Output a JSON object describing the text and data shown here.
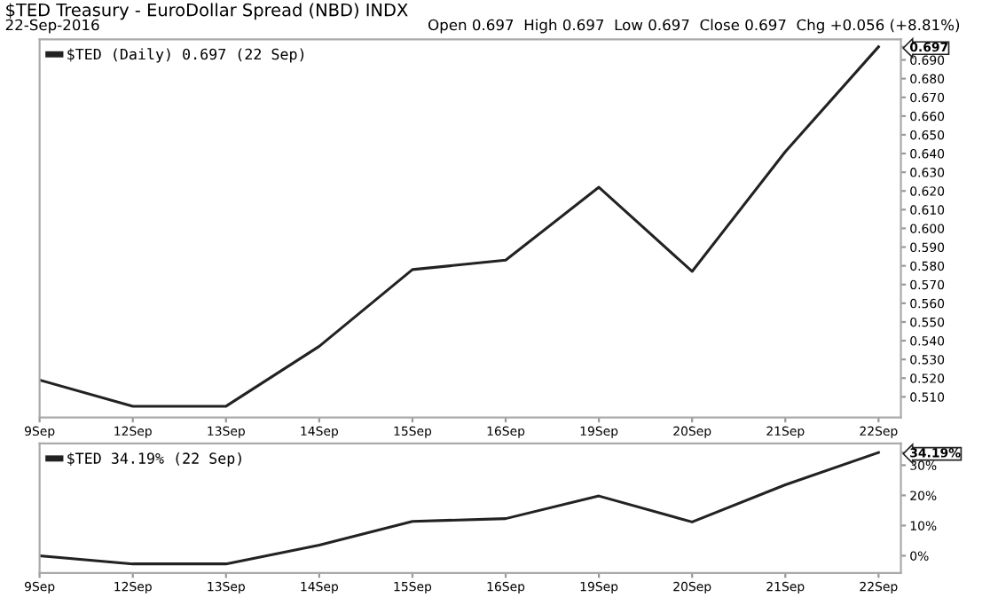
{
  "chart_data": [
    {
      "type": "line",
      "title": "$TED Treasury - EuroDollar Spread (NBD) INDX",
      "subtitle": "22-Sep-2016",
      "annotations": [
        "Open 0.697  High 0.697  Low 0.697  Close 0.697  Chg +0.056 (+8.81%)"
      ],
      "categories": [
        "9Sep",
        "12Sep",
        "13Sep",
        "14Sep",
        "15Sep",
        "16Sep",
        "19Sep",
        "20Sep",
        "21Sep",
        "22Sep"
      ],
      "series": [
        {
          "name": "$TED (Daily) 0.697 (22 Sep)",
          "color": "#222222",
          "values": [
            0.519,
            0.505,
            0.505,
            0.537,
            0.578,
            0.583,
            0.622,
            0.577,
            0.641,
            0.697
          ]
        }
      ],
      "ylim": [
        0.499,
        0.701
      ],
      "yticks": [
        {
          "value": 0.51,
          "label": "0.510"
        },
        {
          "value": 0.52,
          "label": "0.520"
        },
        {
          "value": 0.53,
          "label": "0.530"
        },
        {
          "value": 0.54,
          "label": "0.540"
        },
        {
          "value": 0.55,
          "label": "0.550"
        },
        {
          "value": 0.56,
          "label": "0.560"
        },
        {
          "value": 0.57,
          "label": "0.570"
        },
        {
          "value": 0.58,
          "label": "0.580"
        },
        {
          "value": 0.59,
          "label": "0.590"
        },
        {
          "value": 0.6,
          "label": "0.600"
        },
        {
          "value": 0.61,
          "label": "0.610"
        },
        {
          "value": 0.62,
          "label": "0.620"
        },
        {
          "value": 0.63,
          "label": "0.630"
        },
        {
          "value": 0.64,
          "label": "0.640"
        },
        {
          "value": 0.65,
          "label": "0.650"
        },
        {
          "value": 0.66,
          "label": "0.660"
        },
        {
          "value": 0.67,
          "label": "0.670"
        },
        {
          "value": 0.68,
          "label": "0.680"
        },
        {
          "value": 0.69,
          "label": "0.690"
        },
        {
          "value": 0.697,
          "label": "0.697"
        }
      ],
      "legend": "top left",
      "grid": false
    },
    {
      "type": "line",
      "categories": [
        "9Sep",
        "12Sep",
        "13Sep",
        "14Sep",
        "15Sep",
        "16Sep",
        "19Sep",
        "20Sep",
        "21Sep",
        "22Sep"
      ],
      "series": [
        {
          "name": "$TED 34.19% (22 Sep)",
          "color": "#222222",
          "values": [
            0,
            -2.7,
            -2.7,
            3.5,
            11.4,
            12.3,
            19.8,
            11.2,
            23.5,
            34.19
          ]
        }
      ],
      "ylim": [
        -5.7,
        37.2
      ],
      "yticks": [
        {
          "value": 0,
          "label": "0%"
        },
        {
          "value": 10,
          "label": "10%"
        },
        {
          "value": 20,
          "label": "20%"
        },
        {
          "value": 30,
          "label": "30%"
        },
        {
          "value": 34.19,
          "label": "34.19%"
        }
      ],
      "legend": "top left",
      "grid": false
    }
  ]
}
